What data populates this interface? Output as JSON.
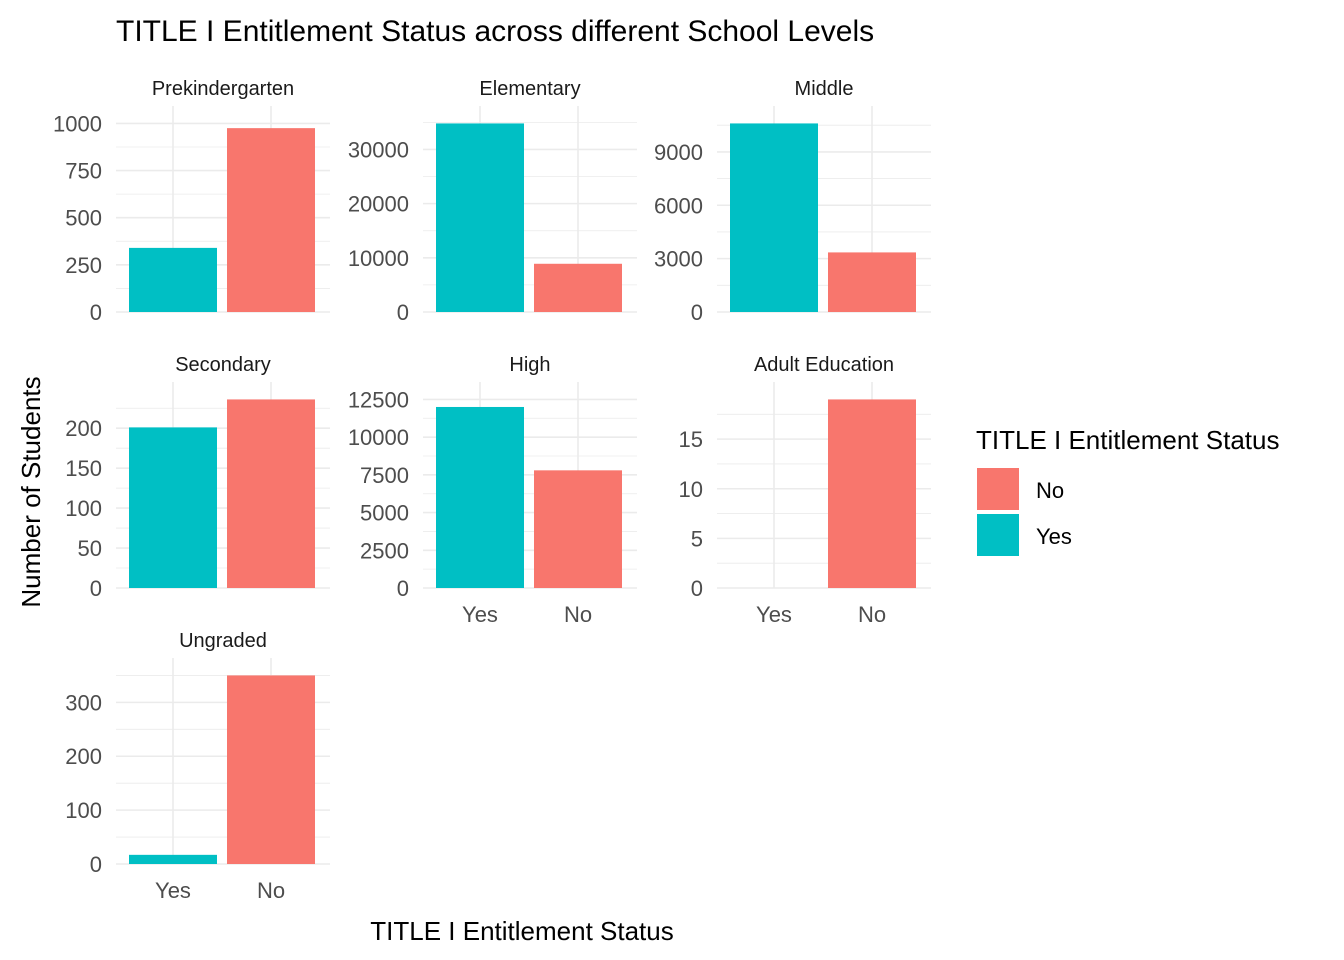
{
  "title": "TITLE I Entitlement Status across different School Levels",
  "xlabel": "TITLE I Entitlement Status",
  "ylabel": "Number of Students",
  "legend": {
    "title": "TITLE I Entitlement Status",
    "items": [
      {
        "label": "No",
        "color": "#F8766D"
      },
      {
        "label": "Yes",
        "color": "#00BFC4"
      }
    ]
  },
  "colors": {
    "Yes": "#00BFC4",
    "No": "#F8766D",
    "grid": "#EBEBEB",
    "text": "#4D4D4D"
  },
  "chart_data": {
    "type": "bar",
    "layout": "facet grid, 3 columns, free y scales",
    "grid": true,
    "legend_position": "right",
    "categories": [
      "Yes",
      "No"
    ],
    "facets": [
      {
        "name": "Prekindergarten",
        "values": [
          340,
          975
        ],
        "ylim": [
          0,
          1000
        ],
        "ticks": [
          0,
          250,
          500,
          750,
          1000
        ],
        "tick_labels": [
          "0",
          "250",
          "500",
          "750",
          "1000"
        ],
        "show_x_labels": false
      },
      {
        "name": "Elementary",
        "values": [
          34800,
          8900
        ],
        "ylim": [
          0,
          34800
        ],
        "ticks": [
          0,
          10000,
          20000,
          30000
        ],
        "tick_labels": [
          "0",
          "10000",
          "20000",
          "30000"
        ],
        "show_x_labels": false
      },
      {
        "name": "Middle",
        "values": [
          10600,
          3350
        ],
        "ylim": [
          0,
          10600
        ],
        "ticks": [
          0,
          3000,
          6000,
          9000
        ],
        "tick_labels": [
          "0",
          "3000",
          "6000",
          "9000"
        ],
        "show_x_labels": false
      },
      {
        "name": "Secondary",
        "values": [
          201,
          236
        ],
        "ylim": [
          0,
          236
        ],
        "ticks": [
          0,
          50,
          100,
          150,
          200
        ],
        "tick_labels": [
          "0",
          "50",
          "100",
          "150",
          "200"
        ],
        "show_x_labels": false
      },
      {
        "name": "High",
        "values": [
          12000,
          7800
        ],
        "ylim": [
          0,
          12500
        ],
        "ticks": [
          0,
          2500,
          5000,
          7500,
          10000,
          12500
        ],
        "tick_labels": [
          "0",
          "2500",
          "5000",
          "7500",
          "10000",
          "12500"
        ],
        "show_x_labels": true
      },
      {
        "name": "Adult Education",
        "values": [
          0,
          19
        ],
        "ylim": [
          0,
          19
        ],
        "ticks": [
          0,
          5,
          10,
          15
        ],
        "tick_labels": [
          "0",
          "5",
          "10",
          "15"
        ],
        "show_x_labels": true
      },
      {
        "name": "Ungraded",
        "values": [
          17,
          350
        ],
        "ylim": [
          0,
          350
        ],
        "ticks": [
          0,
          100,
          200,
          300
        ],
        "tick_labels": [
          "0",
          "100",
          "200",
          "300"
        ],
        "show_x_labels": true
      }
    ]
  }
}
